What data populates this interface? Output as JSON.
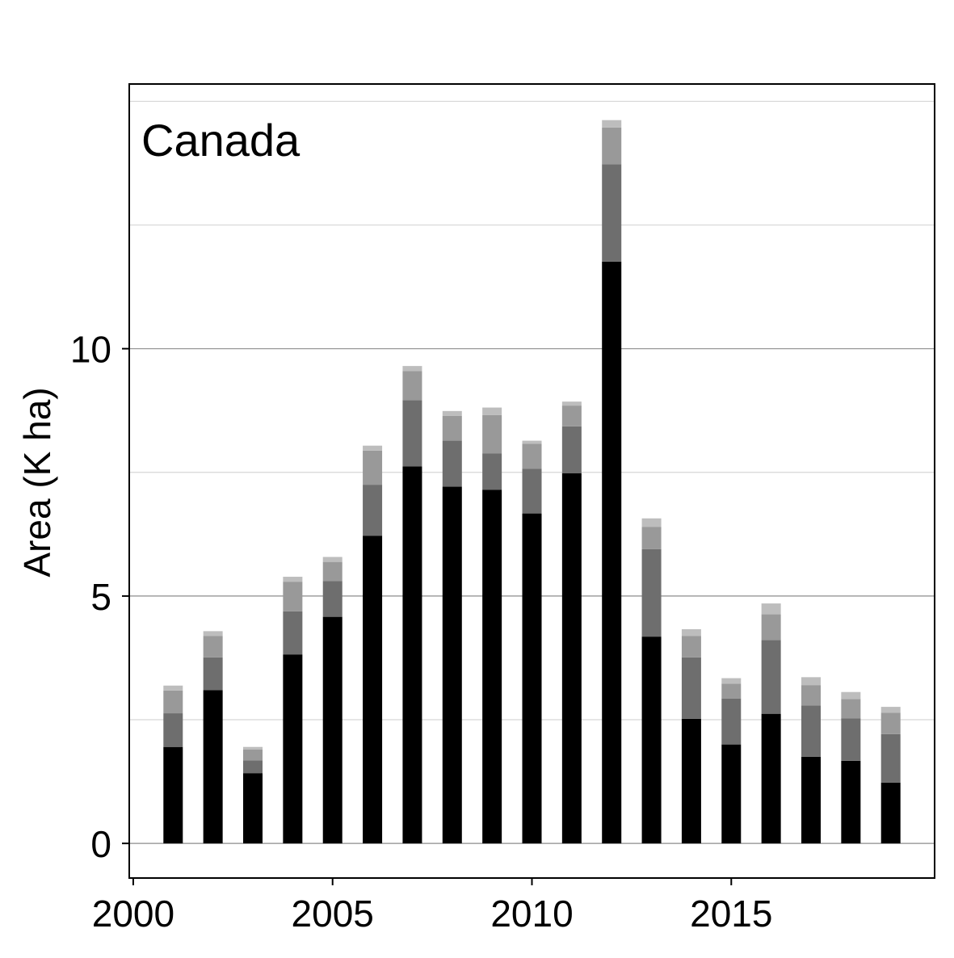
{
  "chart_data": {
    "type": "bar",
    "stacked": true,
    "annotation": "Canada",
    "title": "",
    "xlabel": "",
    "ylabel": "Area (K ha)",
    "xlim": [
      1999.9,
      2020.1
    ],
    "ylim": [
      -0.7,
      15.35
    ],
    "xticks": [
      2000,
      2005,
      2010,
      2015
    ],
    "yticks": [
      0,
      5,
      10
    ],
    "minor_gridlines_y": [
      2.5,
      7.5,
      12.5,
      15
    ],
    "grid": true,
    "legend": "none",
    "x": [
      2001,
      2002,
      2003,
      2004,
      2005,
      2006,
      2007,
      2008,
      2009,
      2010,
      2011,
      2012,
      2013,
      2014,
      2015,
      2016,
      2017,
      2018,
      2019
    ],
    "series": [
      {
        "color": "#000000",
        "values": [
          1.95,
          3.1,
          1.42,
          3.82,
          4.58,
          6.22,
          7.62,
          7.21,
          7.15,
          6.67,
          7.48,
          11.76,
          4.18,
          2.52,
          2.0,
          2.62,
          1.75,
          1.67,
          1.23
        ]
      },
      {
        "color": "#6e6e6e",
        "values": [
          0.68,
          0.66,
          0.26,
          0.87,
          0.72,
          1.03,
          1.34,
          0.93,
          0.73,
          0.9,
          0.95,
          1.97,
          1.77,
          1.24,
          0.93,
          1.49,
          1.04,
          0.86,
          0.98
        ]
      },
      {
        "color": "#999999",
        "values": [
          0.46,
          0.43,
          0.22,
          0.6,
          0.39,
          0.69,
          0.59,
          0.5,
          0.78,
          0.51,
          0.42,
          0.74,
          0.45,
          0.43,
          0.3,
          0.52,
          0.41,
          0.39,
          0.43
        ]
      },
      {
        "color": "#bdbdbd",
        "values": [
          0.1,
          0.1,
          0.05,
          0.1,
          0.1,
          0.1,
          0.1,
          0.1,
          0.15,
          0.06,
          0.08,
          0.15,
          0.17,
          0.14,
          0.11,
          0.22,
          0.16,
          0.14,
          0.12
        ]
      }
    ]
  }
}
